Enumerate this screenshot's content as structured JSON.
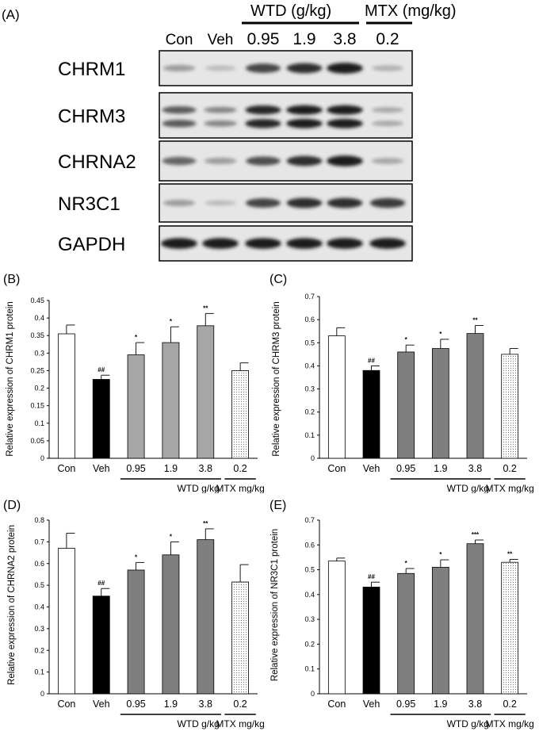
{
  "blot": {
    "panel_label": "(A)",
    "group_wtd": "WTD (g/kg)",
    "group_mtx": "MTX (mg/kg)",
    "lanes": [
      "Con",
      "Veh",
      "0.95",
      "1.9",
      "3.8",
      "0.2"
    ],
    "proteins": [
      {
        "name": "CHRM1",
        "intensity": [
          0.35,
          0.2,
          0.75,
          0.85,
          0.95,
          0.25
        ]
      },
      {
        "name": "CHRM3",
        "intensity": [
          0.65,
          0.45,
          0.9,
          0.95,
          0.95,
          0.3
        ]
      },
      {
        "name": "CHRNA2",
        "intensity": [
          0.6,
          0.35,
          0.7,
          0.85,
          0.95,
          0.3
        ]
      },
      {
        "name": "NR3C1",
        "intensity": [
          0.35,
          0.2,
          0.75,
          0.85,
          0.85,
          0.8
        ]
      },
      {
        "name": "GAPDH",
        "intensity": [
          0.95,
          0.95,
          0.95,
          0.95,
          0.95,
          0.95
        ]
      }
    ]
  },
  "chart_data": [
    {
      "type": "bar",
      "panel_label": "(B)",
      "ylabel": "Relative expression of CHRM1 protein",
      "categories": [
        "Con",
        "Veh",
        "0.95",
        "1.9",
        "3.8",
        "0.2"
      ],
      "values": [
        0.355,
        0.225,
        0.295,
        0.33,
        0.378,
        0.25
      ],
      "errors": [
        0.025,
        0.012,
        0.035,
        0.045,
        0.035,
        0.022
      ],
      "annotations": [
        "",
        "##",
        "*",
        "*",
        "**",
        ""
      ],
      "ylim": [
        0,
        0.45
      ],
      "yticks": [
        "0",
        "0.05",
        "0.1",
        "0.15",
        "0.2",
        "0.25",
        "0.3",
        "0.35",
        "0.4",
        "0.45"
      ],
      "group_labels": [
        "WTD g/kg",
        "MTX mg/kg"
      ],
      "fills": [
        "white",
        "black",
        "lightgray",
        "lightgray",
        "lightgray",
        "dots"
      ]
    },
    {
      "type": "bar",
      "panel_label": "(C)",
      "ylabel": "Relative expression of CHRM3 protein",
      "categories": [
        "Con",
        "Veh",
        "0.95",
        "1.9",
        "3.8",
        "0.2"
      ],
      "values": [
        0.53,
        0.38,
        0.46,
        0.475,
        0.54,
        0.45
      ],
      "errors": [
        0.035,
        0.02,
        0.03,
        0.04,
        0.035,
        0.025
      ],
      "annotations": [
        "",
        "##",
        "*",
        "*",
        "**",
        ""
      ],
      "ylim": [
        0,
        0.7
      ],
      "yticks": [
        "0",
        "0.1",
        "0.2",
        "0.3",
        "0.4",
        "0.5",
        "0.6",
        "0.7"
      ],
      "group_labels": [
        "WTD g/kg",
        "MTX mg/kg"
      ],
      "fills": [
        "white",
        "black",
        "gray",
        "gray",
        "gray",
        "dots"
      ]
    },
    {
      "type": "bar",
      "panel_label": "(D)",
      "ylabel": "Relative expression of CHRNA2 protein",
      "categories": [
        "Con",
        "Veh",
        "0.95",
        "1.9",
        "3.8",
        "0.2"
      ],
      "values": [
        0.67,
        0.45,
        0.57,
        0.64,
        0.71,
        0.515
      ],
      "errors": [
        0.07,
        0.035,
        0.035,
        0.06,
        0.05,
        0.08
      ],
      "annotations": [
        "",
        "##",
        "*",
        "*",
        "**",
        ""
      ],
      "ylim": [
        0,
        0.8
      ],
      "yticks": [
        "0",
        "0.1",
        "0.2",
        "0.3",
        "0.4",
        "0.5",
        "0.6",
        "0.7",
        "0.8"
      ],
      "group_labels": [
        "WTD g/kg",
        "MTX mg/kg"
      ],
      "fills": [
        "white",
        "black",
        "gray",
        "gray",
        "gray",
        "dots"
      ]
    },
    {
      "type": "bar",
      "panel_label": "(E)",
      "ylabel": "Relative expression of NR3C1 protein",
      "categories": [
        "Con",
        "Veh",
        "0.95",
        "1.9",
        "3.8",
        "0.2"
      ],
      "values": [
        0.535,
        0.43,
        0.485,
        0.51,
        0.605,
        0.53
      ],
      "errors": [
        0.012,
        0.02,
        0.02,
        0.03,
        0.015,
        0.012
      ],
      "annotations": [
        "",
        "##",
        "*",
        "*",
        "***",
        "**"
      ],
      "ylim": [
        0,
        0.7
      ],
      "yticks": [
        "0",
        "0.1",
        "0.2",
        "0.3",
        "0.4",
        "0.5",
        "0.6",
        "0.7"
      ],
      "group_labels": [
        "WTD g/kg",
        "MTX mg/kg"
      ],
      "fills": [
        "white",
        "black",
        "gray",
        "gray",
        "gray",
        "dots"
      ]
    }
  ]
}
